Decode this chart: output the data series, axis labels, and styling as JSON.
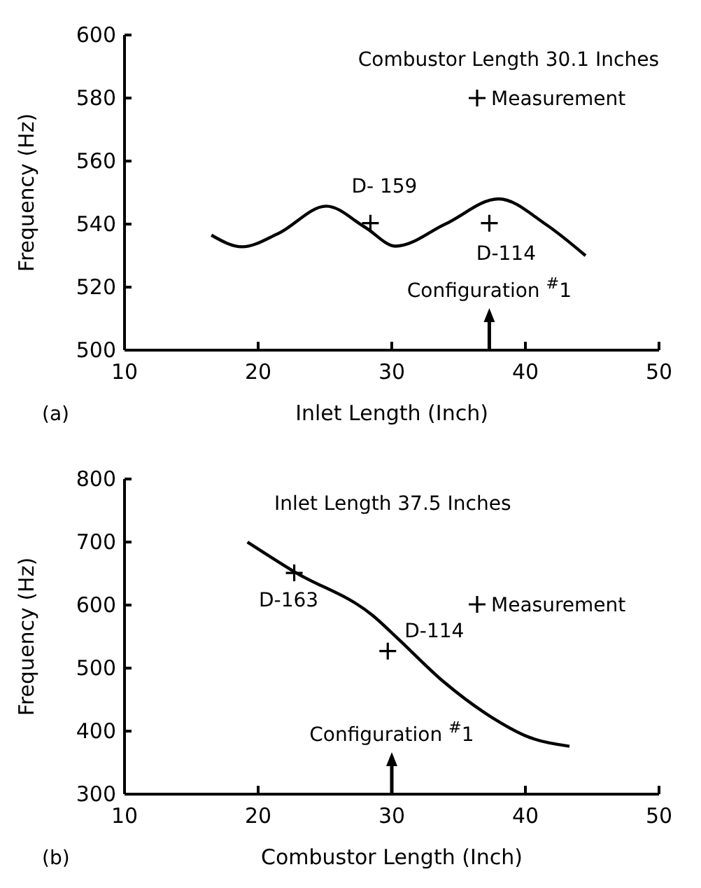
{
  "chart_data": [
    {
      "type": "line",
      "title": "Combustor Length 30.1 Inches",
      "xlabel": "Inlet Length (Inch)",
      "ylabel": "Frequency (Hz)",
      "xlim": [
        10,
        50
      ],
      "xticks": [
        10,
        20,
        30,
        40,
        50
      ],
      "ylim": [
        500,
        600
      ],
      "yticks": [
        500,
        520,
        540,
        560,
        580,
        600
      ],
      "grid": false,
      "legend": "top right",
      "series": [
        {
          "type": "line",
          "color": "#000000",
          "x": [
            16.5,
            18.8,
            21.5,
            25.1,
            28,
            30.3,
            34,
            38,
            41.5,
            44.5
          ],
          "values": [
            536.5,
            532.8,
            537,
            545.7,
            539,
            533,
            540,
            548,
            540,
            530
          ]
        },
        {
          "type": "scatter",
          "name": "Measurement",
          "marker": "cross",
          "color": "#000000",
          "x": [
            28.4,
            37.3
          ],
          "values": [
            540.3,
            540.3
          ]
        }
      ],
      "annotations": [
        "(a)",
        {
          "text": "D- 159",
          "x": 28.4,
          "y": 540.3
        },
        {
          "text": "D-114",
          "x": 37.3,
          "y": 540.3
        },
        {
          "text": "Configuration $^{#}$1",
          "x": 37.3
        }
      ]
    },
    {
      "type": "line",
      "title": "Inlet Length 37.5 Inches",
      "xlabel": "Combustor Length (Inch)",
      "ylabel": "Frequency (Hz)",
      "xlim": [
        10,
        50
      ],
      "xticks": [
        10,
        20,
        30,
        40,
        50
      ],
      "ylim": [
        300,
        800
      ],
      "yticks": [
        300,
        400,
        500,
        600,
        700,
        800
      ],
      "grid": false,
      "legend": "right",
      "series": [
        {
          "type": "line",
          "color": "#000000",
          "x": [
            19.2,
            22.7,
            28.6,
            30.4,
            33.9,
            37.4,
            40.2,
            43.3
          ],
          "values": [
            700,
            653,
            583,
            548,
            478,
            423,
            391,
            376
          ]
        },
        {
          "type": "scatter",
          "name": "Measurement",
          "marker": "cross",
          "color": "#000000",
          "x": [
            22.7,
            29.7
          ],
          "values": [
            651,
            527
          ]
        }
      ],
      "annotations": [
        "(b)",
        {
          "text": "D-163",
          "x": 22.7,
          "y": 651
        },
        {
          "text": "D-114",
          "x": 29.7,
          "y": 527
        },
        {
          "text": "Configuration $^{#}$1",
          "x": 30
        }
      ]
    }
  ]
}
